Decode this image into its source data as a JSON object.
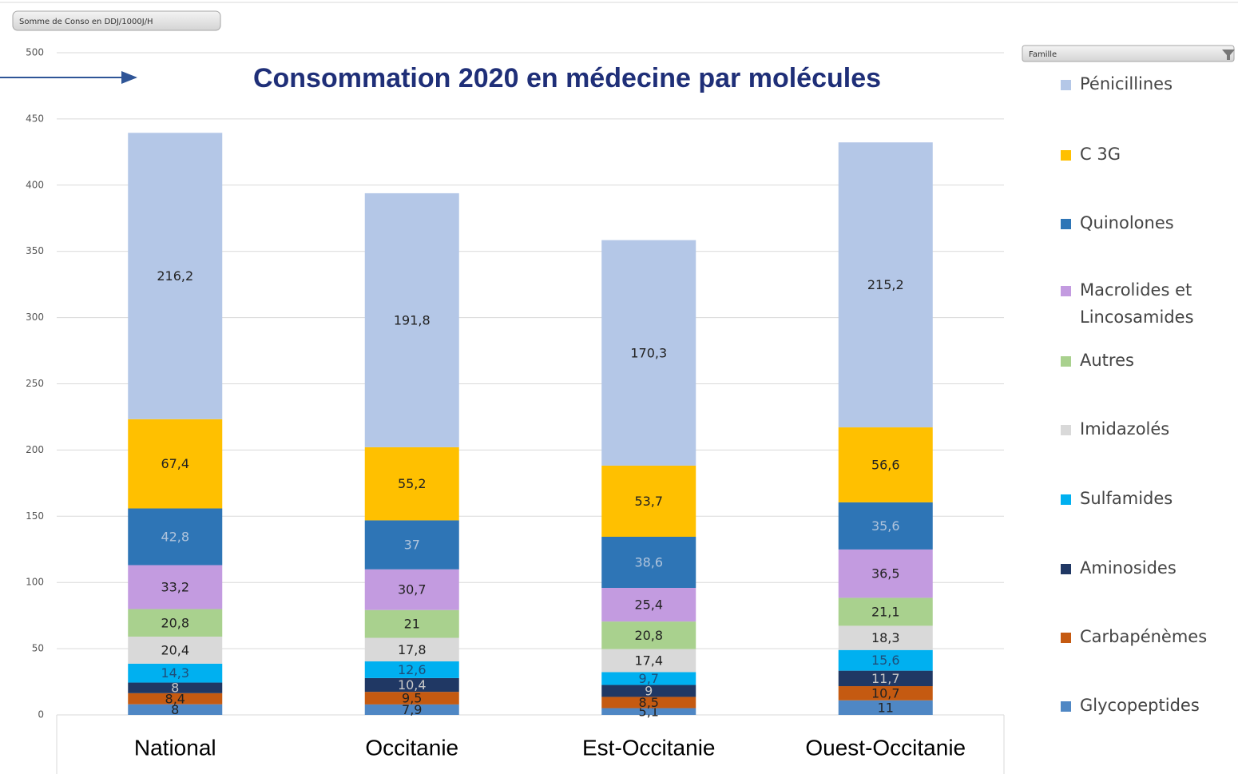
{
  "chart_data": {
    "type": "stacked_bar",
    "title": "Consommation 2020 en médecine par molécules",
    "field_button": "Somme de Conso en DDJ/1000J/H",
    "legend_filter": "Famille",
    "categories": [
      "National",
      "Occitanie",
      "Est-Occitanie",
      "Ouest-Occitanie"
    ],
    "ylim": [
      0,
      500
    ],
    "yticks": [
      0,
      50,
      100,
      150,
      200,
      250,
      300,
      350,
      400,
      450,
      500
    ],
    "grid": true,
    "legend": "right",
    "series": [
      {
        "name": "Glycopeptides",
        "color": "#4f87c4",
        "label_color": "#222222",
        "values": [
          8,
          7.9,
          5.1,
          11
        ],
        "value_labels": [
          "8",
          "7,9",
          "5,1",
          "11"
        ]
      },
      {
        "name": "Carbapénèmes",
        "color": "#c55a11",
        "label_color": "#222222",
        "values": [
          8.4,
          9.5,
          8.5,
          10.7
        ],
        "value_labels": [
          "8,4",
          "9,5",
          "8,5",
          "10,7"
        ]
      },
      {
        "name": "Aminosides",
        "color": "#203864",
        "label_color": "#c8c8c8",
        "values": [
          8,
          10.4,
          9,
          11.7
        ],
        "value_labels": [
          "8",
          "10,4",
          "9",
          "11,7"
        ]
      },
      {
        "name": "Sulfamides",
        "color": "#00b0f0",
        "label_color": "#1f4e79",
        "values": [
          14.3,
          12.6,
          9.7,
          15.6
        ],
        "value_labels": [
          "14,3",
          "12,6",
          "9,7",
          "15,6"
        ]
      },
      {
        "name": "Imidazolés",
        "color": "#d9d9d9",
        "label_color": "#222222",
        "values": [
          20.4,
          17.8,
          17.4,
          18.3
        ],
        "value_labels": [
          "20,4",
          "17,8",
          "17,4",
          "18,3"
        ]
      },
      {
        "name": "Autres",
        "color": "#a9d18e",
        "label_color": "#222222",
        "values": [
          20.8,
          21,
          20.8,
          21.1
        ],
        "value_labels": [
          "20,8",
          "21",
          "20,8",
          "21,1"
        ]
      },
      {
        "name": "Macrolides et Lincosamides",
        "color": "#c39be0",
        "label_color": "#222222",
        "values": [
          33.2,
          30.7,
          25.4,
          36.5
        ],
        "value_labels": [
          "33,2",
          "30,7",
          "25,4",
          "36,5"
        ]
      },
      {
        "name": "Quinolones",
        "color": "#2e75b6",
        "label_color": "#b0c4dc",
        "values": [
          42.8,
          37,
          38.6,
          35.6
        ],
        "value_labels": [
          "42,8",
          "37",
          "38,6",
          "35,6"
        ]
      },
      {
        "name": "C 3G",
        "color": "#ffc000",
        "label_color": "#222222",
        "values": [
          67.4,
          55.2,
          53.7,
          56.6
        ],
        "value_labels": [
          "67,4",
          "55,2",
          "53,7",
          "56,6"
        ]
      },
      {
        "name": "Pénicillines",
        "color": "#b4c7e7",
        "label_color": "#222222",
        "values": [
          216.2,
          191.8,
          170.3,
          215.2
        ],
        "value_labels": [
          "216,2",
          "191,8",
          "170,3",
          "215,2"
        ]
      }
    ]
  }
}
